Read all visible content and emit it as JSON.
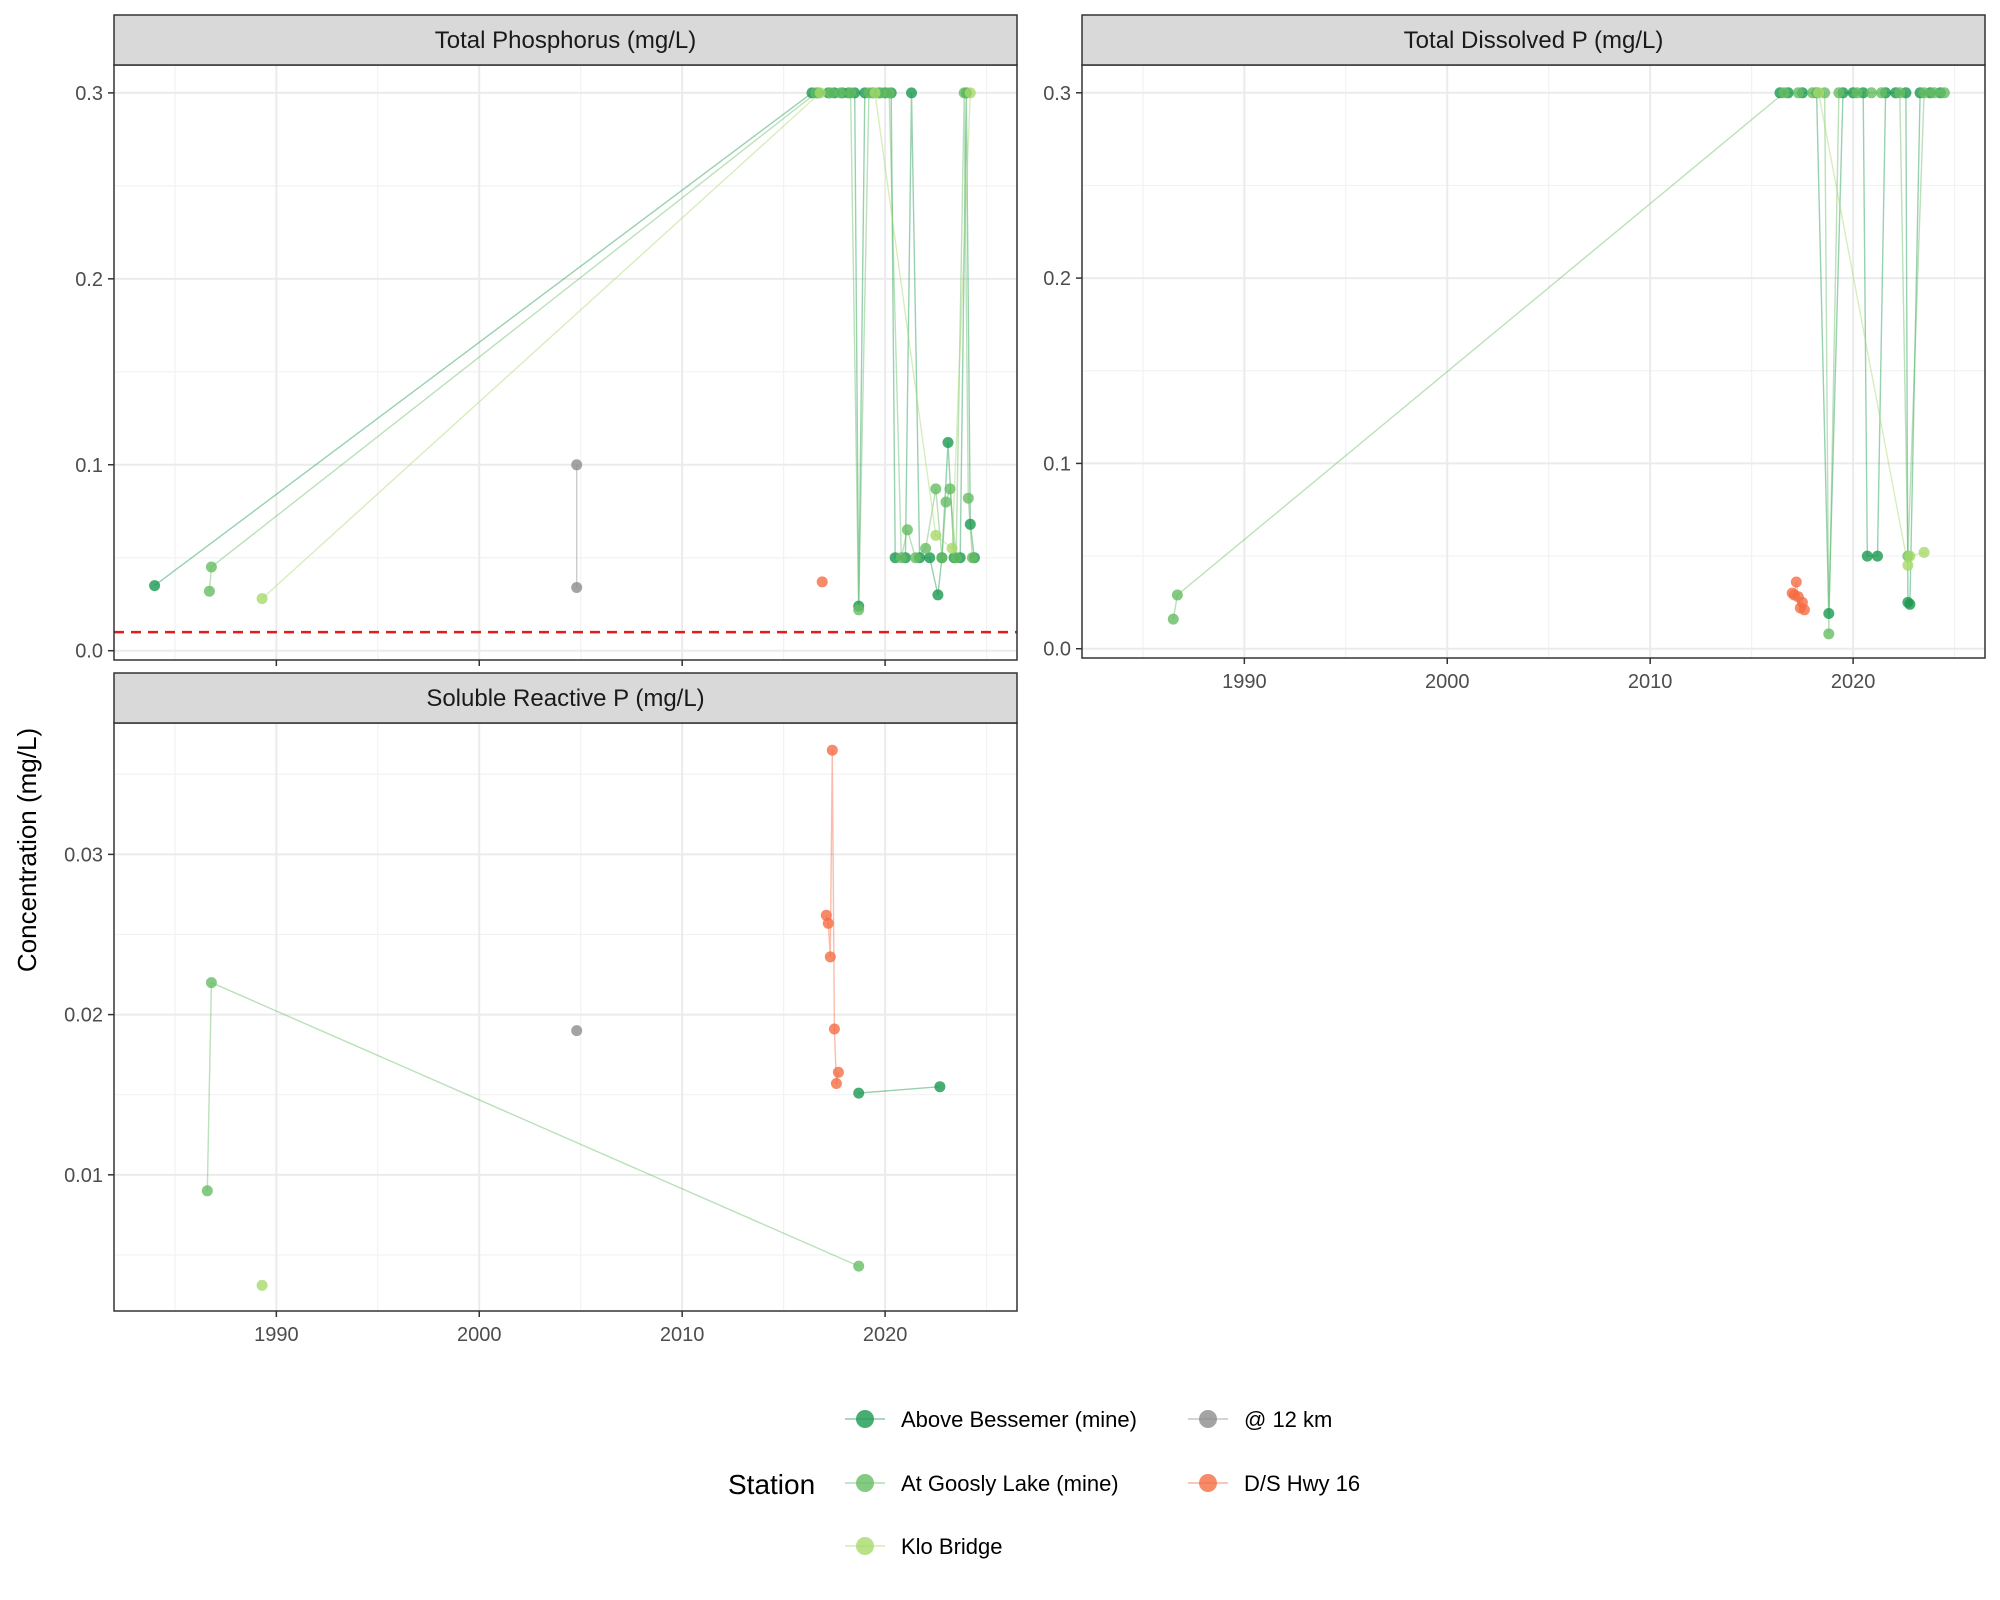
{
  "figure": {
    "ylabel": "Concentration (mg/L)",
    "legend_title": "Station",
    "legend_placement": "bottom"
  },
  "stations": [
    {
      "name": "Above Bessemer (mine)",
      "color": "#1a9850"
    },
    {
      "name": "At Goosly Lake (mine)",
      "color": "#66bd63"
    },
    {
      "name": "Klo Bridge",
      "color": "#a6d96a"
    },
    {
      "name": "@ 12 km",
      "color": "#8c8c8c"
    },
    {
      "name": "D/S Hwy 16",
      "color": "#f46d43"
    }
  ],
  "chart_data": [
    {
      "type": "scatter",
      "title": "Total Phosphorus (mg/L)",
      "xlim": [
        1982,
        2026.5
      ],
      "ylim": [
        -0.005,
        0.315
      ],
      "x_ticks": [
        1990,
        2000,
        2010,
        2020
      ],
      "y_ticks": [
        0.0,
        0.1,
        0.2,
        0.3
      ],
      "y_tick_labels": [
        "0.0",
        "0.1",
        "0.2",
        "0.3"
      ],
      "show_x_ticks": false,
      "hline": {
        "y": 0.01,
        "color": "#e41a1c",
        "style": "dashed"
      },
      "series": [
        {
          "name": "Above Bessemer (mine)",
          "x": [
            1984.0,
            2016.4,
            2016.7,
            2017.2,
            2017.5,
            2017.9,
            2018.2,
            2018.5,
            2018.7,
            2019.0,
            2019.4,
            2019.7,
            2020.0,
            2020.3,
            2020.5,
            2021.0,
            2021.3,
            2021.7,
            2022.2,
            2022.6,
            2022.8,
            2023.1,
            2023.4,
            2023.7,
            2024.0,
            2024.2,
            2024.4
          ],
          "y": [
            0.035,
            0.3,
            0.3,
            0.3,
            0.3,
            0.3,
            0.3,
            0.3,
            0.024,
            0.3,
            0.3,
            0.3,
            0.3,
            0.3,
            0.05,
            0.05,
            0.3,
            0.05,
            0.05,
            0.03,
            0.05,
            0.112,
            0.05,
            0.05,
            0.3,
            0.068,
            0.05
          ]
        },
        {
          "name": "At Goosly Lake (mine)",
          "x": [
            1986.7,
            1986.8,
            2016.6,
            2017.3,
            2017.8,
            2018.3,
            2018.7,
            2019.2,
            2019.8,
            2020.2,
            2020.8,
            2021.1,
            2021.5,
            2022.0,
            2022.5,
            2022.8,
            2023.0,
            2023.2,
            2023.5,
            2023.9,
            2024.1,
            2024.3
          ],
          "y": [
            0.032,
            0.045,
            0.3,
            0.3,
            0.3,
            0.3,
            0.022,
            0.3,
            0.3,
            0.3,
            0.05,
            0.065,
            0.05,
            0.055,
            0.087,
            0.05,
            0.08,
            0.087,
            0.05,
            0.3,
            0.082,
            0.05
          ]
        },
        {
          "name": "Klo Bridge",
          "x": [
            1989.3,
            2016.8,
            2019.5,
            2022.5,
            2023.3,
            2024.2
          ],
          "y": [
            0.028,
            0.3,
            0.3,
            0.062,
            0.055,
            0.3
          ]
        },
        {
          "name": "@ 12 km",
          "x": [
            2004.8,
            2004.8
          ],
          "y": [
            0.034,
            0.1
          ]
        },
        {
          "name": "D/S Hwy 16",
          "x": [
            2016.9
          ],
          "y": [
            0.037
          ]
        }
      ]
    },
    {
      "type": "scatter",
      "title": "Total Dissolved P (mg/L)",
      "xlim": [
        1982,
        2026.5
      ],
      "ylim": [
        -0.005,
        0.315
      ],
      "x_ticks": [
        1990,
        2000,
        2010,
        2020
      ],
      "y_ticks": [
        0.0,
        0.1,
        0.2,
        0.3
      ],
      "y_tick_labels": [
        "0.0",
        "0.1",
        "0.2",
        "0.3"
      ],
      "show_x_ticks": true,
      "series": [
        {
          "name": "Above Bessemer (mine)",
          "x": [
            2016.4,
            2016.8,
            2017.5,
            2018.2,
            2018.8,
            2019.5,
            2020.0,
            2020.5,
            2020.7,
            2021.2,
            2021.6,
            2022.1,
            2022.6,
            2022.7,
            2022.8,
            2023.3,
            2023.8,
            2024.3
          ],
          "y": [
            0.3,
            0.3,
            0.3,
            0.3,
            0.019,
            0.3,
            0.3,
            0.3,
            0.05,
            0.05,
            0.3,
            0.3,
            0.3,
            0.025,
            0.024,
            0.3,
            0.3,
            0.3
          ]
        },
        {
          "name": "At Goosly Lake (mine)",
          "x": [
            1986.5,
            1986.7,
            2016.6,
            2017.3,
            2018.0,
            2018.6,
            2018.8,
            2019.3,
            2020.2,
            2020.9,
            2021.4,
            2022.3,
            2022.7,
            2023.5,
            2024.0,
            2024.5
          ],
          "y": [
            0.016,
            0.029,
            0.3,
            0.3,
            0.3,
            0.3,
            0.008,
            0.3,
            0.3,
            0.3,
            0.3,
            0.3,
            0.05,
            0.3,
            0.3,
            0.3
          ]
        },
        {
          "name": "Klo Bridge",
          "x": [
            2018.3,
            2022.7,
            2022.8,
            2023.5
          ],
          "y": [
            0.3,
            0.045,
            0.05,
            0.052
          ]
        },
        {
          "name": "D/S Hwy 16",
          "x": [
            2017.0,
            2017.1,
            2017.2,
            2017.3,
            2017.4,
            2017.5,
            2017.6
          ],
          "y": [
            0.03,
            0.029,
            0.036,
            0.028,
            0.022,
            0.025,
            0.021
          ]
        }
      ]
    },
    {
      "type": "scatter",
      "title": "Soluble Reactive P (mg/L)",
      "xlim": [
        1982,
        2026.5
      ],
      "ylim": [
        0.0015,
        0.0382
      ],
      "x_ticks": [
        1990,
        2000,
        2010,
        2020
      ],
      "y_ticks": [
        0.01,
        0.02,
        0.03
      ],
      "y_tick_labels": [
        "0.01",
        "0.02",
        "0.03"
      ],
      "show_x_ticks": true,
      "series": [
        {
          "name": "Above Bessemer (mine)",
          "x": [
            2018.7,
            2022.7
          ],
          "y": [
            0.0151,
            0.0155
          ]
        },
        {
          "name": "At Goosly Lake (mine)",
          "x": [
            1986.6,
            1986.8,
            2018.7
          ],
          "y": [
            0.009,
            0.022,
            0.0043
          ]
        },
        {
          "name": "Klo Bridge",
          "x": [
            1989.3
          ],
          "y": [
            0.0031
          ]
        },
        {
          "name": "@ 12 km",
          "x": [
            2004.8
          ],
          "y": [
            0.019
          ]
        },
        {
          "name": "D/S Hwy 16",
          "x": [
            2017.1,
            2017.2,
            2017.3,
            2017.4,
            2017.5,
            2017.6,
            2017.7
          ],
          "y": [
            0.0262,
            0.0257,
            0.0236,
            0.0365,
            0.0191,
            0.0157,
            0.0164
          ]
        }
      ]
    }
  ]
}
